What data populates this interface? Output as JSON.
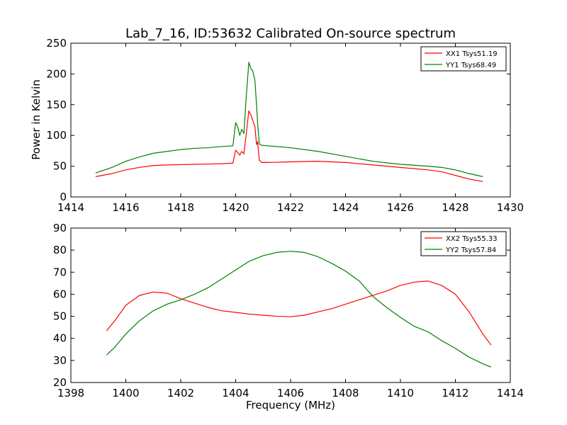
{
  "chart_data": [
    {
      "type": "line",
      "title": "Lab_7_16, ID:53632 Calibrated On-source spectrum",
      "xlabel": "",
      "ylabel": "Power in Kelvin",
      "xlim": [
        1414,
        1430
      ],
      "ylim": [
        0,
        250
      ],
      "xticks": [
        1414,
        1416,
        1418,
        1420,
        1422,
        1424,
        1426,
        1428,
        1430
      ],
      "yticks": [
        0,
        50,
        100,
        150,
        200,
        250
      ],
      "legend": "top-right",
      "grid": false,
      "series": [
        {
          "name": "XX1 Tsys51.19",
          "color": "#ff0000",
          "points": [
            [
              1414.9,
              33
            ],
            [
              1415.5,
              38
            ],
            [
              1416,
              44
            ],
            [
              1416.5,
              48
            ],
            [
              1417,
              51
            ],
            [
              1417.5,
              52
            ],
            [
              1418,
              52.5
            ],
            [
              1418.5,
              53
            ],
            [
              1419,
              53.5
            ],
            [
              1419.5,
              54
            ],
            [
              1419.9,
              55
            ],
            [
              1420.0,
              76
            ],
            [
              1420.08,
              72
            ],
            [
              1420.15,
              68
            ],
            [
              1420.22,
              74
            ],
            [
              1420.3,
              70
            ],
            [
              1420.38,
              100
            ],
            [
              1420.48,
              140
            ],
            [
              1420.56,
              133
            ],
            [
              1420.62,
              125
            ],
            [
              1420.7,
              115
            ],
            [
              1420.76,
              85
            ],
            [
              1420.8,
              90
            ],
            [
              1420.86,
              60
            ],
            [
              1420.95,
              56
            ],
            [
              1421.2,
              56
            ],
            [
              1422,
              57
            ],
            [
              1423,
              58
            ],
            [
              1424,
              56
            ],
            [
              1425,
              52
            ],
            [
              1426,
              48
            ],
            [
              1427,
              44
            ],
            [
              1427.5,
              41
            ],
            [
              1428,
              35
            ],
            [
              1428.5,
              29
            ],
            [
              1429,
              25
            ]
          ]
        },
        {
          "name": "YY1 Tsys68.49",
          "color": "#008000",
          "points": [
            [
              1414.9,
              39
            ],
            [
              1415.5,
              48
            ],
            [
              1416,
              58
            ],
            [
              1416.5,
              65
            ],
            [
              1417,
              71
            ],
            [
              1417.5,
              74
            ],
            [
              1418,
              77
            ],
            [
              1418.5,
              79
            ],
            [
              1419,
              80
            ],
            [
              1419.5,
              82
            ],
            [
              1419.9,
              83
            ],
            [
              1420.0,
              121
            ],
            [
              1420.08,
              113
            ],
            [
              1420.15,
              100
            ],
            [
              1420.22,
              110
            ],
            [
              1420.3,
              103
            ],
            [
              1420.38,
              160
            ],
            [
              1420.48,
              219
            ],
            [
              1420.56,
              208
            ],
            [
              1420.62,
              205
            ],
            [
              1420.7,
              190
            ],
            [
              1420.76,
              150
            ],
            [
              1420.8,
              120
            ],
            [
              1420.86,
              86
            ],
            [
              1420.95,
              84
            ],
            [
              1421.2,
              83
            ],
            [
              1422,
              80
            ],
            [
              1423,
              74
            ],
            [
              1424,
              66
            ],
            [
              1425,
              58
            ],
            [
              1426,
              53
            ],
            [
              1427,
              50
            ],
            [
              1427.5,
              48
            ],
            [
              1428,
              44
            ],
            [
              1428.5,
              38
            ],
            [
              1429,
              33
            ]
          ]
        }
      ]
    },
    {
      "type": "line",
      "title": "",
      "xlabel": "Frequency (MHz)",
      "ylabel": "",
      "xlim": [
        1398,
        1414
      ],
      "ylim": [
        20,
        90
      ],
      "xticks": [
        1398,
        1400,
        1402,
        1404,
        1406,
        1408,
        1410,
        1412,
        1414
      ],
      "yticks": [
        20,
        30,
        40,
        50,
        60,
        70,
        80,
        90
      ],
      "legend": "top-right",
      "grid": false,
      "series": [
        {
          "name": "XX2 Tsys55.33",
          "color": "#ff0000",
          "points": [
            [
              1399.3,
              43.5
            ],
            [
              1399.6,
              48
            ],
            [
              1400,
              55
            ],
            [
              1400.5,
              59.5
            ],
            [
              1401,
              61
            ],
            [
              1401.5,
              60.5
            ],
            [
              1402,
              58
            ],
            [
              1402.5,
              56
            ],
            [
              1403,
              54
            ],
            [
              1403.5,
              52.5
            ],
            [
              1404,
              51.8
            ],
            [
              1404.5,
              51
            ],
            [
              1405,
              50.5
            ],
            [
              1405.5,
              50
            ],
            [
              1406,
              49.8
            ],
            [
              1406.5,
              50.5
            ],
            [
              1407,
              52
            ],
            [
              1407.5,
              53.5
            ],
            [
              1408,
              55.5
            ],
            [
              1408.5,
              57.5
            ],
            [
              1409,
              59.5
            ],
            [
              1409.5,
              61.5
            ],
            [
              1410,
              64
            ],
            [
              1410.5,
              65.5
            ],
            [
              1411,
              66
            ],
            [
              1411.5,
              64
            ],
            [
              1412,
              60
            ],
            [
              1412.5,
              52
            ],
            [
              1413,
              42
            ],
            [
              1413.3,
              37
            ]
          ]
        },
        {
          "name": "YY2 Tsys57.84",
          "color": "#008000",
          "points": [
            [
              1399.3,
              32.5
            ],
            [
              1399.6,
              36
            ],
            [
              1400,
              42
            ],
            [
              1400.5,
              48
            ],
            [
              1401,
              52.5
            ],
            [
              1401.5,
              55.5
            ],
            [
              1402,
              57.5
            ],
            [
              1402.5,
              60
            ],
            [
              1403,
              63
            ],
            [
              1403.5,
              67
            ],
            [
              1404,
              71
            ],
            [
              1404.5,
              75
            ],
            [
              1405,
              77.5
            ],
            [
              1405.5,
              79
            ],
            [
              1406,
              79.5
            ],
            [
              1406.5,
              79
            ],
            [
              1407,
              77
            ],
            [
              1407.5,
              74
            ],
            [
              1408,
              70.5
            ],
            [
              1408.5,
              66
            ],
            [
              1409,
              59
            ],
            [
              1409.5,
              54
            ],
            [
              1410,
              49.5
            ],
            [
              1410.5,
              45.5
            ],
            [
              1411,
              43
            ],
            [
              1411.5,
              39
            ],
            [
              1412,
              35.5
            ],
            [
              1412.5,
              31.5
            ],
            [
              1413,
              28.5
            ],
            [
              1413.3,
              27
            ]
          ]
        }
      ]
    }
  ]
}
